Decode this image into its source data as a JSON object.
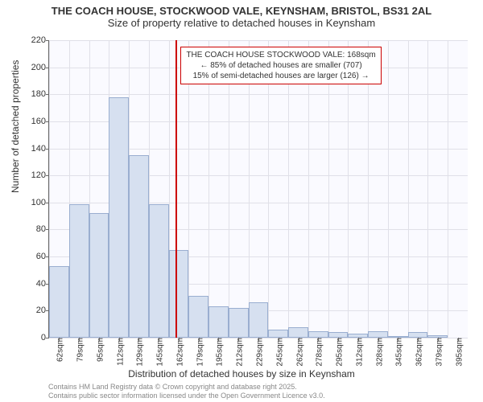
{
  "title_main": "THE COACH HOUSE, STOCKWOOD VALE, KEYNSHAM, BRISTOL, BS31 2AL",
  "title_sub": "Size of property relative to detached houses in Keynsham",
  "y_axis_label": "Number of detached properties",
  "x_axis_label": "Distribution of detached houses by size in Keynsham",
  "chart": {
    "type": "histogram",
    "background_color": "#fafaff",
    "grid_color": "#e0e0e8",
    "axis_color": "#666666",
    "bar_fill": "#d6e0f0",
    "bar_border": "#9aaed0",
    "marker_color": "#cc0000",
    "ylim": [
      0,
      220
    ],
    "ytick_step": 20,
    "yticks": [
      0,
      20,
      40,
      60,
      80,
      100,
      120,
      140,
      160,
      180,
      200,
      220
    ],
    "x_start": 62,
    "x_step": 16.67,
    "xticks": [
      "62sqm",
      "79sqm",
      "95sqm",
      "112sqm",
      "129sqm",
      "145sqm",
      "162sqm",
      "179sqm",
      "195sqm",
      "212sqm",
      "229sqm",
      "245sqm",
      "262sqm",
      "278sqm",
      "295sqm",
      "312sqm",
      "328sqm",
      "345sqm",
      "362sqm",
      "379sqm",
      "395sqm"
    ],
    "values": [
      53,
      99,
      92,
      178,
      135,
      99,
      65,
      31,
      23,
      22,
      26,
      6,
      8,
      5,
      4,
      3,
      5,
      1,
      4,
      2,
      0
    ],
    "marker_x": 168,
    "marker_x_label": "168sqm"
  },
  "annotation": {
    "line1": "THE COACH HOUSE STOCKWOOD VALE: 168sqm",
    "line2": "← 85% of detached houses are smaller (707)",
    "line3": "15% of semi-detached houses are larger (126) →"
  },
  "footer_line1": "Contains HM Land Registry data © Crown copyright and database right 2025.",
  "footer_line2": "Contains public sector information licensed under the Open Government Licence v3.0."
}
